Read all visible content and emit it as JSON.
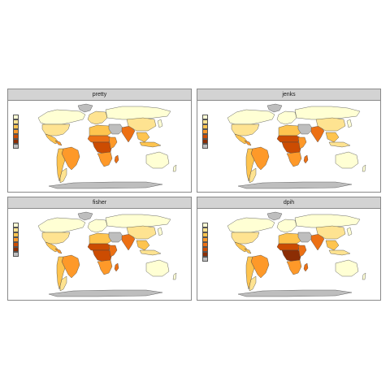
{
  "panels": [
    {
      "id": "pretty",
      "title": "pretty",
      "style": 0
    },
    {
      "id": "jenks",
      "title": "jenks",
      "style": 1
    },
    {
      "id": "fisher",
      "title": "fisher",
      "style": 2
    },
    {
      "id": "dpih",
      "title": "dpih",
      "style": 3
    }
  ],
  "palette": [
    "#FFFFD4",
    "#FEE391",
    "#FEC44F",
    "#FE9929",
    "#EC7014",
    "#CC4C02",
    "#8C2D04"
  ],
  "missing_color": "#BEBEBE",
  "legend_classes": [
    {
      "colors": [
        "#FFFFD4",
        "#FEE391",
        "#FEC44F",
        "#FE9929",
        "#CC4C02",
        "#8C2D04",
        "#BEBEBE"
      ]
    },
    {
      "colors": [
        "#FFFFD4",
        "#FEE391",
        "#FEC44F",
        "#FE9929",
        "#CC4C02",
        "#8C2D04",
        "#BEBEBE"
      ]
    },
    {
      "colors": [
        "#FFFFD4",
        "#FEE391",
        "#FEC44F",
        "#FE9929",
        "#CC4C02",
        "#8C2D04",
        "#BEBEBE"
      ]
    },
    {
      "colors": [
        "#FFFFD4",
        "#FEE391",
        "#FEC44F",
        "#FE9929",
        "#EC7014",
        "#CC4C02",
        "#8C2D04",
        "#BEBEBE"
      ]
    }
  ]
}
